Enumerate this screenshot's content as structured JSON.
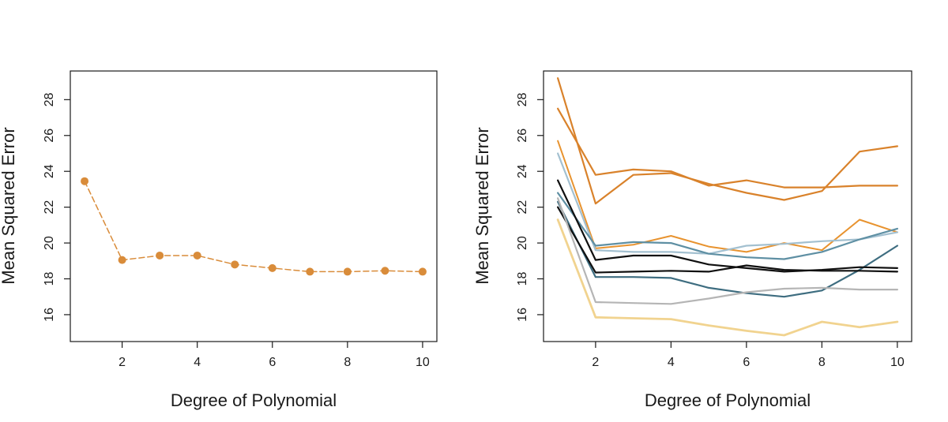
{
  "chart_data": [
    {
      "type": "line",
      "title": "",
      "xlabel": "Degree of Polynomial",
      "ylabel": "Mean Squared Error",
      "xlim": [
        0.62,
        10.38
      ],
      "ylim": [
        14.5,
        29.6
      ],
      "xticks": [
        2,
        4,
        6,
        8,
        10
      ],
      "yticks": [
        16,
        18,
        20,
        22,
        24,
        26,
        28
      ],
      "grid": false,
      "legend": "none",
      "series": [
        {
          "color": "#d98c3a",
          "markers": true,
          "dashed": true,
          "line_width": 1.5,
          "x": [
            1,
            2,
            3,
            4,
            5,
            6,
            7,
            8,
            9,
            10
          ],
          "values": [
            23.45,
            19.05,
            19.3,
            19.3,
            18.8,
            18.6,
            18.4,
            18.4,
            18.45,
            18.4
          ]
        }
      ]
    },
    {
      "type": "line",
      "title": "",
      "xlabel": "Degree of Polynomial",
      "ylabel": "Mean Squared Error",
      "xlim": [
        0.62,
        10.38
      ],
      "ylim": [
        14.5,
        29.6
      ],
      "xticks": [
        2,
        4,
        6,
        8,
        10
      ],
      "yticks": [
        16,
        18,
        20,
        22,
        24,
        26,
        28
      ],
      "grid": false,
      "legend": "none",
      "series": [
        {
          "color": "#d9822b",
          "line_width": 2.2,
          "x": [
            1,
            2,
            3,
            4,
            5,
            6,
            7,
            8,
            9,
            10
          ],
          "values": [
            29.2,
            22.2,
            23.8,
            23.9,
            23.3,
            22.8,
            22.4,
            22.9,
            25.1,
            25.4
          ]
        },
        {
          "color": "#d9822b",
          "line_width": 2.2,
          "x": [
            1,
            2,
            3,
            4,
            5,
            6,
            7,
            8,
            9,
            10
          ],
          "values": [
            27.5,
            23.8,
            24.1,
            24.0,
            23.2,
            23.5,
            23.1,
            23.1,
            23.2,
            23.2
          ]
        },
        {
          "color": "#e8932f",
          "line_width": 2.0,
          "x": [
            1,
            2,
            3,
            4,
            5,
            6,
            7,
            8,
            9,
            10
          ],
          "values": [
            25.7,
            19.7,
            19.9,
            20.4,
            19.8,
            19.5,
            20.0,
            19.6,
            21.3,
            20.6
          ]
        },
        {
          "color": "#a3c0d0",
          "line_width": 2.2,
          "x": [
            1,
            2,
            3,
            4,
            5,
            6,
            7,
            8,
            9,
            10
          ],
          "values": [
            25.0,
            19.6,
            19.5,
            19.5,
            19.4,
            19.85,
            19.95,
            20.1,
            20.2,
            20.6
          ]
        },
        {
          "color": "#5e8fa3",
          "line_width": 2.2,
          "x": [
            1,
            2,
            3,
            4,
            5,
            6,
            7,
            8,
            9,
            10
          ],
          "values": [
            22.8,
            19.85,
            20.05,
            20.0,
            19.4,
            19.2,
            19.1,
            19.5,
            20.2,
            20.8
          ]
        },
        {
          "color": "#3e6d80",
          "line_width": 2.2,
          "x": [
            1,
            2,
            3,
            4,
            5,
            6,
            7,
            8,
            9,
            10
          ],
          "values": [
            22.3,
            18.1,
            18.1,
            18.05,
            17.5,
            17.2,
            17.0,
            17.35,
            18.5,
            19.85
          ]
        },
        {
          "color": "#101010",
          "line_width": 2.2,
          "x": [
            1,
            2,
            3,
            4,
            5,
            6,
            7,
            8,
            9,
            10
          ],
          "values": [
            23.5,
            19.05,
            19.3,
            19.3,
            18.8,
            18.6,
            18.4,
            18.5,
            18.65,
            18.6
          ]
        },
        {
          "color": "#101010",
          "line_width": 2.2,
          "x": [
            1,
            2,
            3,
            4,
            5,
            6,
            7,
            8,
            9,
            10
          ],
          "values": [
            22.0,
            18.35,
            18.4,
            18.45,
            18.4,
            18.75,
            18.5,
            18.45,
            18.45,
            18.4
          ]
        },
        {
          "color": "#b5b5b5",
          "line_width": 2.2,
          "x": [
            1,
            2,
            3,
            4,
            5,
            6,
            7,
            8,
            9,
            10
          ],
          "values": [
            22.5,
            16.7,
            16.65,
            16.6,
            16.9,
            17.25,
            17.45,
            17.5,
            17.4,
            17.4
          ]
        },
        {
          "color": "#f1d38f",
          "line_width": 2.8,
          "x": [
            1,
            2,
            3,
            4,
            5,
            6,
            7,
            8,
            9,
            10
          ],
          "values": [
            21.3,
            15.85,
            15.8,
            15.75,
            15.4,
            15.1,
            14.85,
            15.6,
            15.3,
            15.6
          ]
        }
      ]
    }
  ]
}
